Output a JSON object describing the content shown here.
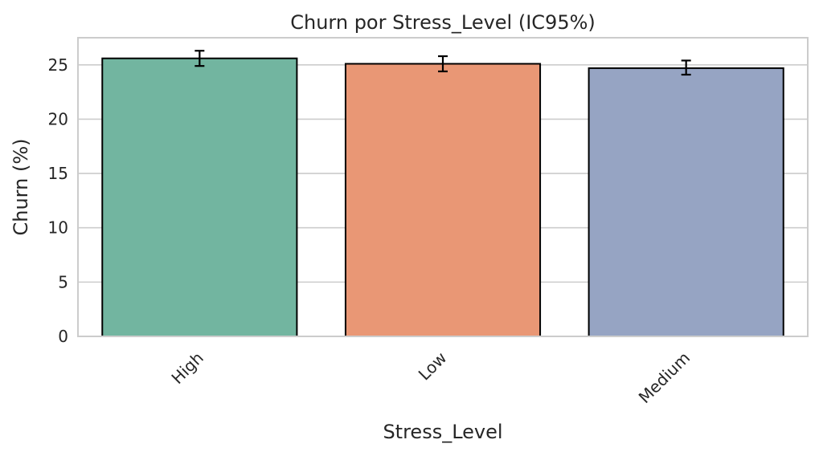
{
  "chart_data": {
    "type": "bar",
    "title": "Churn por Stress_Level (IC95%)",
    "xlabel": "Stress_Level",
    "ylabel": "Churn (%)",
    "categories": [
      "High",
      "Low",
      "Medium"
    ],
    "values": [
      25.6,
      25.1,
      24.7
    ],
    "ci_low": [
      24.9,
      24.4,
      24.1
    ],
    "ci_high": [
      26.3,
      25.8,
      25.4
    ],
    "colors": [
      "#72b5a0",
      "#e99775",
      "#96a4c3"
    ],
    "ylim": [
      0,
      27.5
    ],
    "yticks": [
      0,
      5,
      10,
      15,
      20,
      25
    ],
    "grid": true
  }
}
